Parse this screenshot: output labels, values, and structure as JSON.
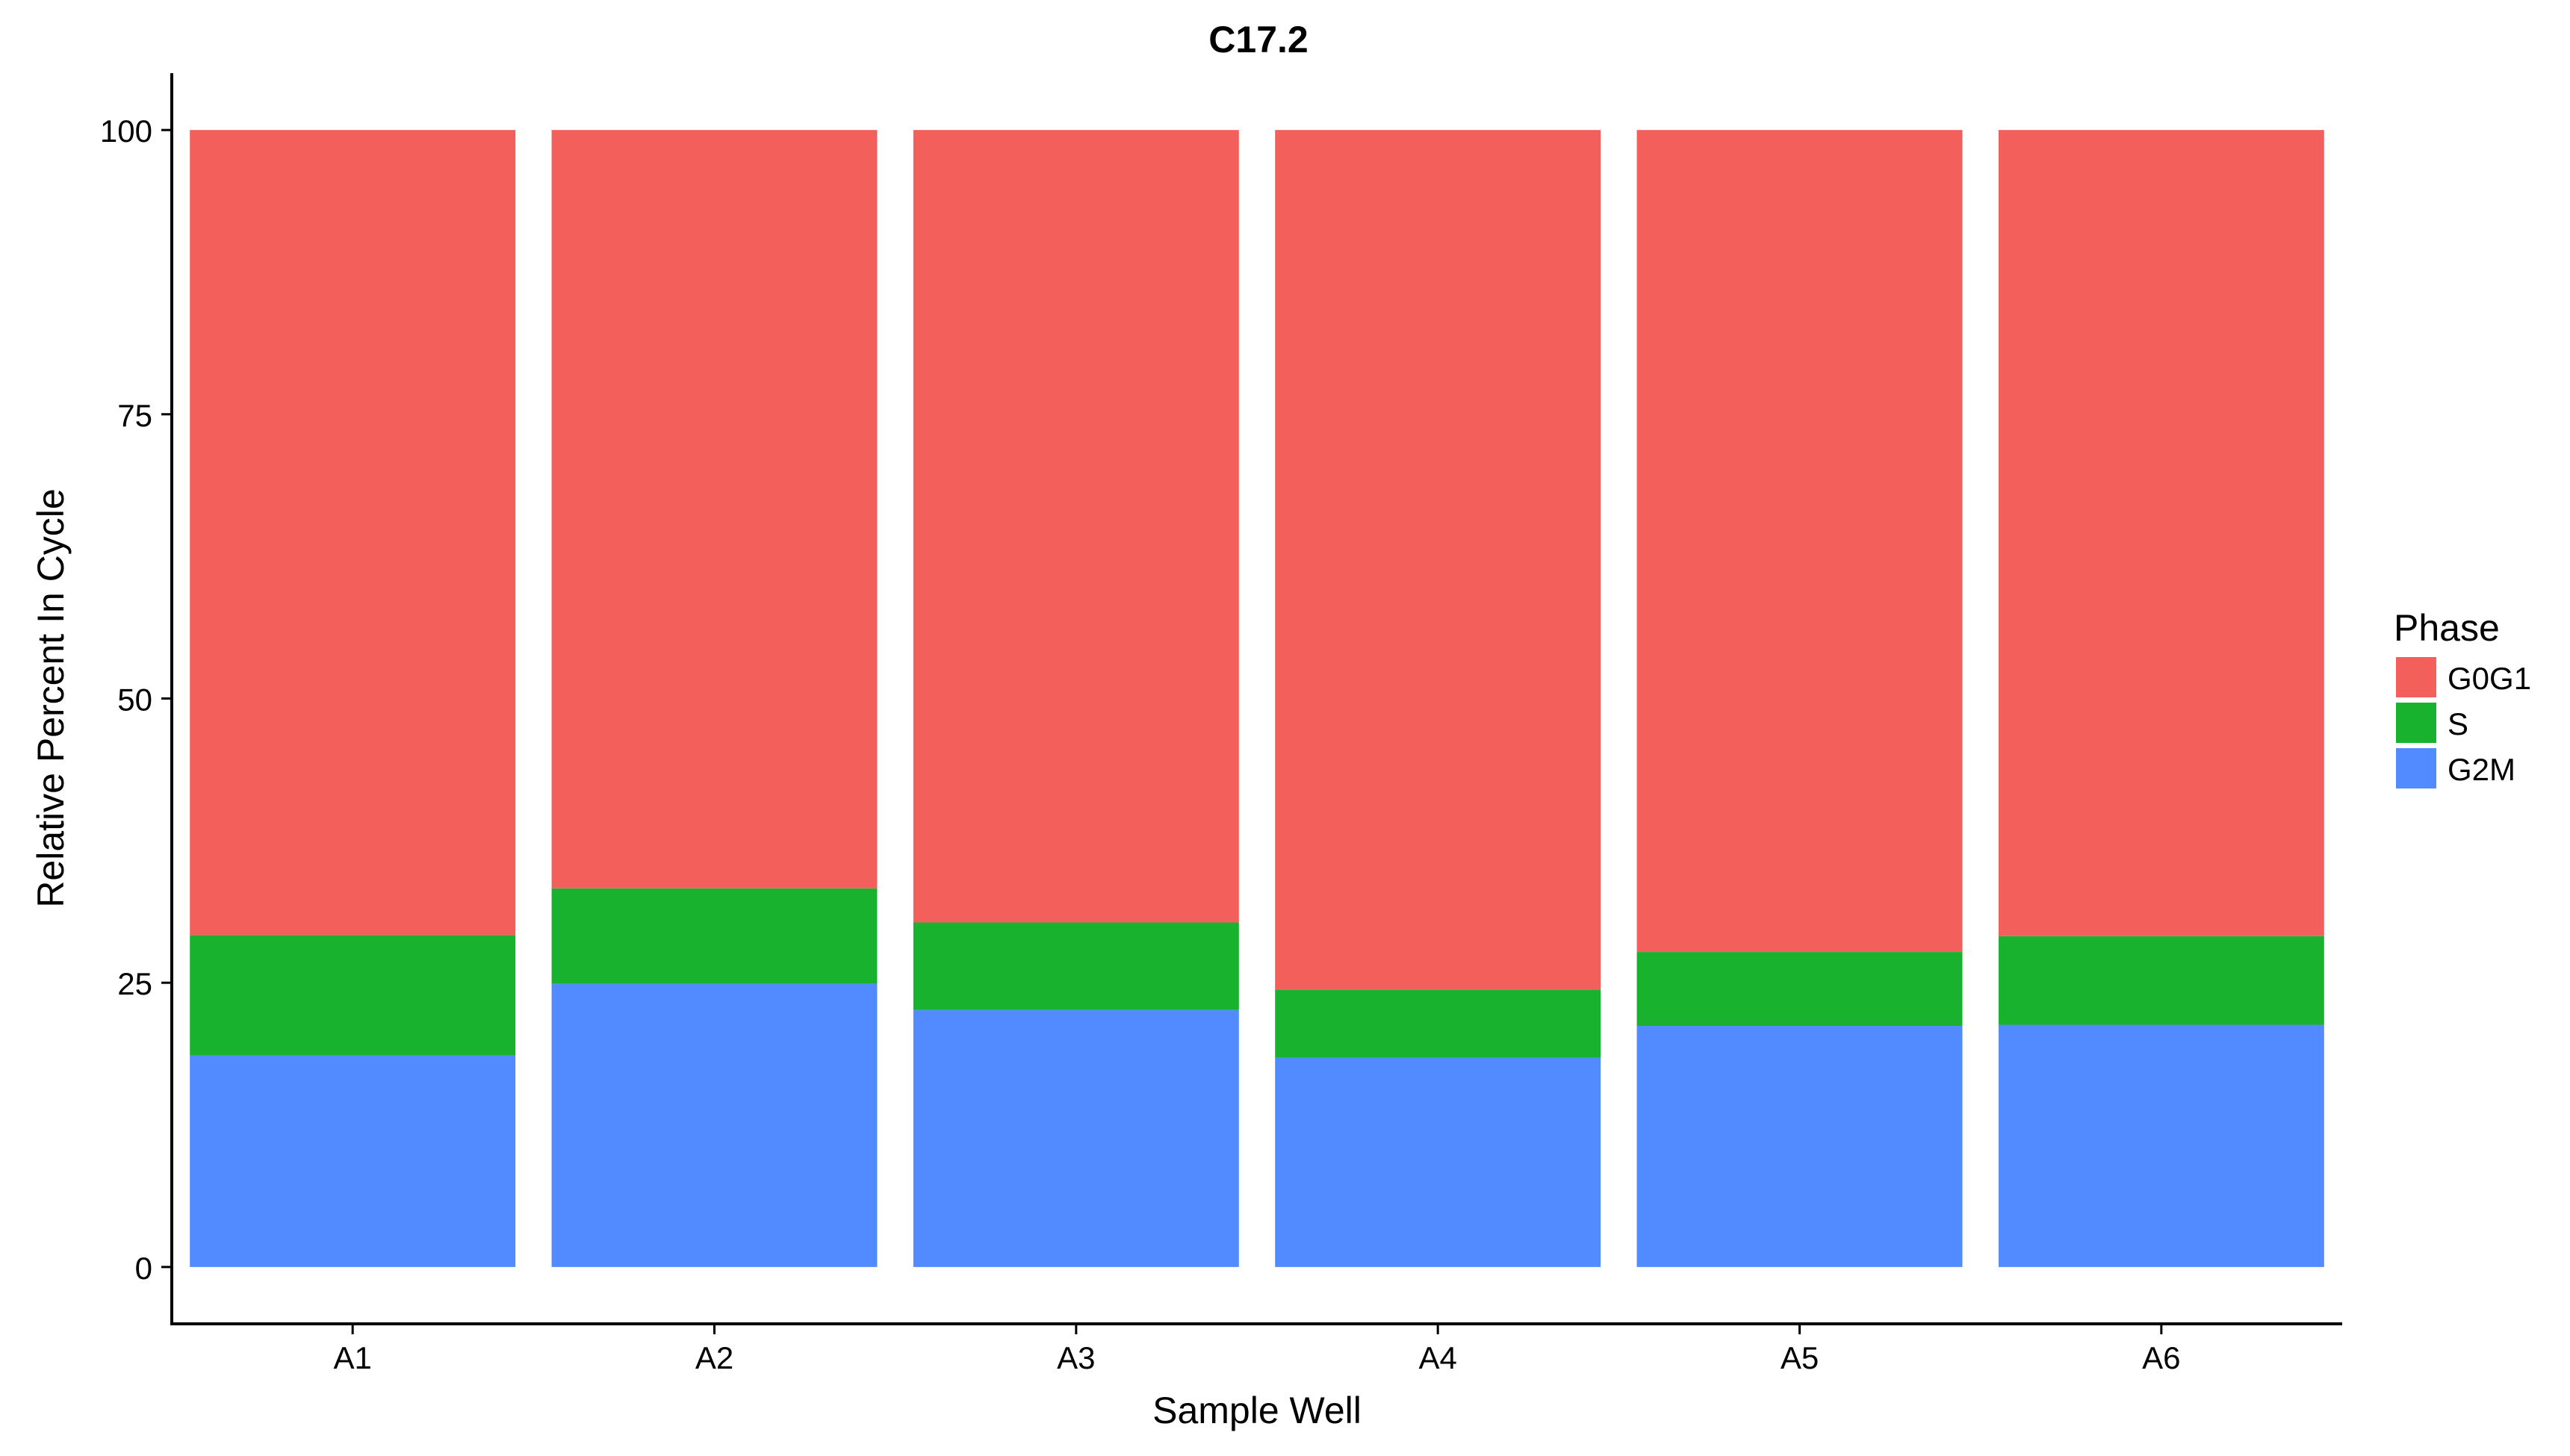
{
  "chart_data": {
    "type": "bar",
    "stacked": true,
    "title": "C17.2",
    "xlabel": "Sample Well",
    "ylabel": "Relative Percent In Cycle",
    "categories": [
      "A1",
      "A2",
      "A3",
      "A4",
      "A5",
      "A6"
    ],
    "ylim": [
      -5,
      105
    ],
    "yticks": [
      0,
      25,
      50,
      75,
      100
    ],
    "grid": false,
    "legend": {
      "title": "Phase",
      "position": "right"
    },
    "series": [
      {
        "name": "G2M",
        "color": "#528AFF",
        "values": [
          18.6,
          24.9,
          22.6,
          18.4,
          21.2,
          21.3
        ]
      },
      {
        "name": "S",
        "color": "#19B22E",
        "values": [
          10.6,
          8.4,
          7.7,
          6.0,
          6.5,
          7.8
        ]
      },
      {
        "name": "G0G1",
        "color": "#F3605B",
        "values": [
          70.8,
          66.7,
          69.7,
          75.6,
          72.3,
          70.9
        ]
      }
    ],
    "legend_order": [
      "G0G1",
      "S",
      "G2M"
    ]
  }
}
